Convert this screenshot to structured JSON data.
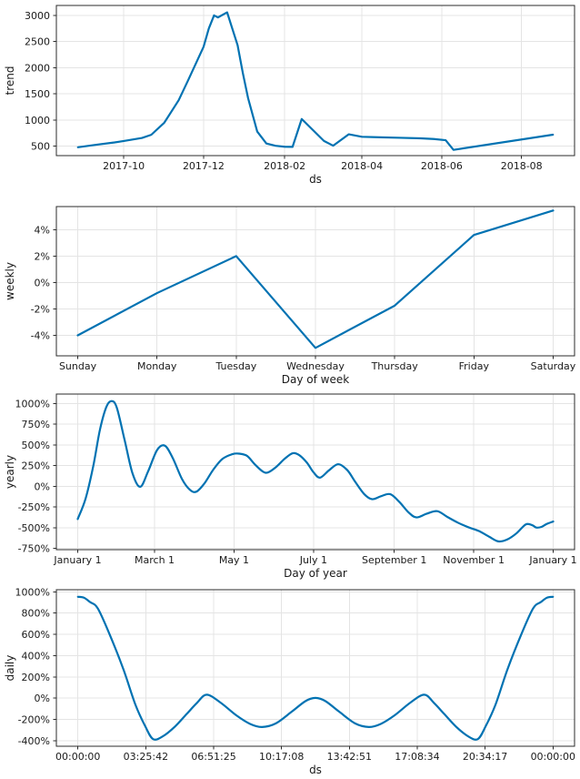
{
  "figure": {
    "background": "#ffffff",
    "line_color": "#0072B2",
    "grid_color": "#e4e4e4",
    "spine_color": "#2b2b2b",
    "tick_color": "#2b2b2b",
    "text_color": "#1a1a1a"
  },
  "chart_data": [
    {
      "id": "trend",
      "type": "line",
      "xlabel": "ds",
      "ylabel": "trend",
      "smooth": false,
      "grid": true,
      "xlim": [
        -16.5,
        379.5
      ],
      "ylim": [
        320,
        3190
      ],
      "x_unit": "days since 2017-08-27",
      "xticks": [
        {
          "v": 35,
          "label": "2017-10"
        },
        {
          "v": 96,
          "label": "2017-12"
        },
        {
          "v": 158,
          "label": "2018-02"
        },
        {
          "v": 217,
          "label": "2018-04"
        },
        {
          "v": 278,
          "label": "2018-06"
        },
        {
          "v": 339,
          "label": "2018-08"
        }
      ],
      "yticks": [
        {
          "v": 500,
          "label": "500"
        },
        {
          "v": 1000,
          "label": "1000"
        },
        {
          "v": 1500,
          "label": "1500"
        },
        {
          "v": 2000,
          "label": "2000"
        },
        {
          "v": 2500,
          "label": "2500"
        },
        {
          "v": 3000,
          "label": "3000"
        }
      ],
      "points": [
        [
          0,
          480
        ],
        [
          14,
          528
        ],
        [
          28,
          572
        ],
        [
          35,
          600
        ],
        [
          49,
          658
        ],
        [
          56,
          718
        ],
        [
          66,
          950
        ],
        [
          77,
          1380
        ],
        [
          84,
          1750
        ],
        [
          96,
          2400
        ],
        [
          100,
          2750
        ],
        [
          104,
          3000
        ],
        [
          107,
          2962
        ],
        [
          114,
          3058
        ],
        [
          122,
          2430
        ],
        [
          126,
          1900
        ],
        [
          130,
          1420
        ],
        [
          137,
          780
        ],
        [
          144,
          552
        ],
        [
          151,
          508
        ],
        [
          158,
          490
        ],
        [
          164,
          487
        ],
        [
          171,
          1020
        ],
        [
          188,
          600
        ],
        [
          195,
          510
        ],
        [
          207,
          728
        ],
        [
          217,
          680
        ],
        [
          231,
          670
        ],
        [
          247,
          660
        ],
        [
          262,
          650
        ],
        [
          272,
          638
        ],
        [
          281,
          615
        ],
        [
          287,
          430
        ],
        [
          363,
          720
        ]
      ]
    },
    {
      "id": "weekly",
      "type": "line",
      "xlabel": "Day of week",
      "ylabel": "weekly",
      "smooth": false,
      "grid": true,
      "xlim": [
        -0.27,
        6.27
      ],
      "ylim": [
        -5.55,
        5.75
      ],
      "xticks": [
        {
          "v": 0,
          "label": "Sunday"
        },
        {
          "v": 1,
          "label": "Monday"
        },
        {
          "v": 2,
          "label": "Tuesday"
        },
        {
          "v": 3,
          "label": "Wednesday"
        },
        {
          "v": 4,
          "label": "Thursday"
        },
        {
          "v": 5,
          "label": "Friday"
        },
        {
          "v": 6,
          "label": "Saturday"
        }
      ],
      "yticks": [
        {
          "v": -4,
          "label": "-4%"
        },
        {
          "v": -2,
          "label": "-2%"
        },
        {
          "v": 0,
          "label": "0%"
        },
        {
          "v": 2,
          "label": "2%"
        },
        {
          "v": 4,
          "label": "4%"
        }
      ],
      "points": [
        [
          0,
          -4.0
        ],
        [
          1,
          -0.8
        ],
        [
          2,
          2.0
        ],
        [
          3,
          -4.95
        ],
        [
          4,
          -1.75
        ],
        [
          5,
          3.6
        ],
        [
          6,
          5.45
        ]
      ]
    },
    {
      "id": "yearly",
      "type": "line",
      "xlabel": "Day of year",
      "ylabel": "yearly",
      "smooth": true,
      "grid": true,
      "xlim": [
        -16.4,
        381.4
      ],
      "ylim": [
        -765,
        1115
      ],
      "xticks": [
        {
          "v": 0,
          "label": "January 1"
        },
        {
          "v": 59,
          "label": "March 1"
        },
        {
          "v": 120,
          "label": "May 1"
        },
        {
          "v": 181,
          "label": "July 1"
        },
        {
          "v": 243,
          "label": "September 1"
        },
        {
          "v": 304,
          "label": "November 1"
        },
        {
          "v": 365,
          "label": "January 1"
        }
      ],
      "yticks": [
        {
          "v": -750,
          "label": "-750%"
        },
        {
          "v": -500,
          "label": "-500%"
        },
        {
          "v": -250,
          "label": "-250%"
        },
        {
          "v": 0,
          "label": "0%"
        },
        {
          "v": 250,
          "label": "250%"
        },
        {
          "v": 500,
          "label": "500%"
        },
        {
          "v": 750,
          "label": "750%"
        },
        {
          "v": 1000,
          "label": "1000%"
        }
      ],
      "points": [
        [
          0,
          -395
        ],
        [
          6,
          -150
        ],
        [
          12,
          250
        ],
        [
          17,
          680
        ],
        [
          22,
          960
        ],
        [
          26,
          1030
        ],
        [
          30,
          950
        ],
        [
          36,
          560
        ],
        [
          42,
          160
        ],
        [
          48,
          -5
        ],
        [
          54,
          180
        ],
        [
          61,
          440
        ],
        [
          67,
          490
        ],
        [
          73,
          340
        ],
        [
          80,
          90
        ],
        [
          86,
          -40
        ],
        [
          91,
          -65
        ],
        [
          97,
          30
        ],
        [
          104,
          200
        ],
        [
          111,
          330
        ],
        [
          119,
          390
        ],
        [
          124,
          395
        ],
        [
          130,
          368
        ],
        [
          136,
          265
        ],
        [
          142,
          180
        ],
        [
          146,
          168
        ],
        [
          152,
          230
        ],
        [
          159,
          335
        ],
        [
          165,
          400
        ],
        [
          170,
          378
        ],
        [
          176,
          285
        ],
        [
          181,
          170
        ],
        [
          186,
          105
        ],
        [
          193,
          195
        ],
        [
          200,
          268
        ],
        [
          207,
          195
        ],
        [
          213,
          55
        ],
        [
          220,
          -95
        ],
        [
          226,
          -155
        ],
        [
          233,
          -118
        ],
        [
          240,
          -95
        ],
        [
          247,
          -190
        ],
        [
          254,
          -315
        ],
        [
          260,
          -375
        ],
        [
          268,
          -330
        ],
        [
          276,
          -300
        ],
        [
          284,
          -372
        ],
        [
          292,
          -440
        ],
        [
          300,
          -495
        ],
        [
          308,
          -540
        ],
        [
          316,
          -610
        ],
        [
          323,
          -665
        ],
        [
          330,
          -640
        ],
        [
          337,
          -565
        ],
        [
          344,
          -460
        ],
        [
          349,
          -470
        ],
        [
          352,
          -498
        ],
        [
          356,
          -490
        ],
        [
          360,
          -455
        ],
        [
          365,
          -425
        ]
      ]
    },
    {
      "id": "daily",
      "type": "line",
      "xlabel": "ds",
      "ylabel": "daily",
      "smooth": true,
      "grid": true,
      "xlim": [
        -1.09,
        25.09
      ],
      "ylim": [
        -453,
        1020
      ],
      "x_unit": "hours",
      "xticks": [
        {
          "v": 0,
          "label": "00:00:00"
        },
        {
          "v": 3.42857,
          "label": "03:25:42"
        },
        {
          "v": 6.85714,
          "label": "06:51:25"
        },
        {
          "v": 10.28571,
          "label": "10:17:08"
        },
        {
          "v": 13.71429,
          "label": "13:42:51"
        },
        {
          "v": 17.14286,
          "label": "17:08:34"
        },
        {
          "v": 20.57143,
          "label": "20:34:17"
        },
        {
          "v": 24,
          "label": "00:00:00"
        }
      ],
      "yticks": [
        {
          "v": -400,
          "label": "-400%"
        },
        {
          "v": -200,
          "label": "-200%"
        },
        {
          "v": 0,
          "label": "0%"
        },
        {
          "v": 200,
          "label": "200%"
        },
        {
          "v": 400,
          "label": "400%"
        },
        {
          "v": 600,
          "label": "600%"
        },
        {
          "v": 800,
          "label": "800%"
        },
        {
          "v": 1000,
          "label": "1000%"
        }
      ],
      "points": [
        [
          0,
          953
        ],
        [
          0.3,
          945
        ],
        [
          0.6,
          905
        ],
        [
          1,
          845
        ],
        [
          1.6,
          600
        ],
        [
          2.3,
          270
        ],
        [
          2.9,
          -60
        ],
        [
          3.4,
          -265
        ],
        [
          3.8,
          -386
        ],
        [
          4.3,
          -358
        ],
        [
          4.9,
          -268
        ],
        [
          5.5,
          -148
        ],
        [
          6.0,
          -48
        ],
        [
          6.5,
          32
        ],
        [
          7.2,
          -42
        ],
        [
          8.0,
          -162
        ],
        [
          8.7,
          -243
        ],
        [
          9.3,
          -272
        ],
        [
          10.0,
          -238
        ],
        [
          10.8,
          -128
        ],
        [
          11.5,
          -28
        ],
        [
          12.0,
          2
        ],
        [
          12.5,
          -28
        ],
        [
          13.2,
          -128
        ],
        [
          14.0,
          -238
        ],
        [
          14.7,
          -272
        ],
        [
          15.3,
          -243
        ],
        [
          16.0,
          -162
        ],
        [
          16.8,
          -42
        ],
        [
          17.5,
          32
        ],
        [
          18.0,
          -48
        ],
        [
          18.5,
          -148
        ],
        [
          19.1,
          -268
        ],
        [
          19.7,
          -358
        ],
        [
          20.2,
          -386
        ],
        [
          20.6,
          -265
        ],
        [
          21.1,
          -60
        ],
        [
          21.7,
          270
        ],
        [
          22.4,
          600
        ],
        [
          23,
          845
        ],
        [
          23.4,
          905
        ],
        [
          23.7,
          945
        ],
        [
          24,
          953
        ]
      ]
    }
  ]
}
